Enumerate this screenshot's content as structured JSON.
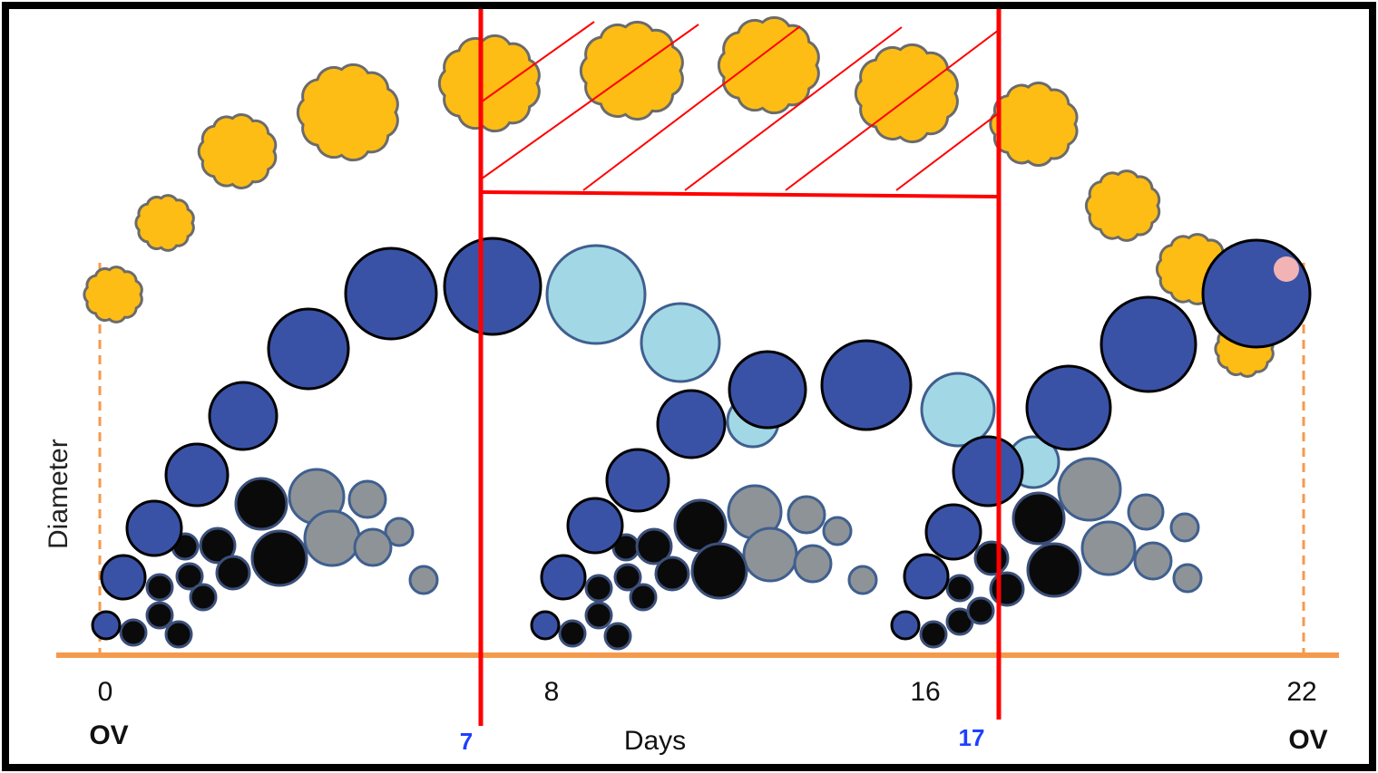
{
  "diagram": {
    "y_axis_label": "Diameter",
    "x_axis_label": "Days",
    "day_ticks": [
      "0",
      "8",
      "16",
      "22"
    ],
    "ovulation_labels": [
      "OV",
      "OV"
    ],
    "window_marker_labels": [
      "7",
      "17"
    ],
    "window_start_day": 7,
    "window_end_day": 17,
    "colors": {
      "corpus_luteum": "#fdbd14",
      "dominant_follicle": "#3a52a5",
      "atretic_dominant": "#a2d8e5",
      "small_follicle": "#0a0a0a",
      "regressing_follicle": "#8e9397",
      "axis": "#f59a4d",
      "window_lines": "#ff0000",
      "ovulation_marker": "#f1b3b4"
    }
  }
}
